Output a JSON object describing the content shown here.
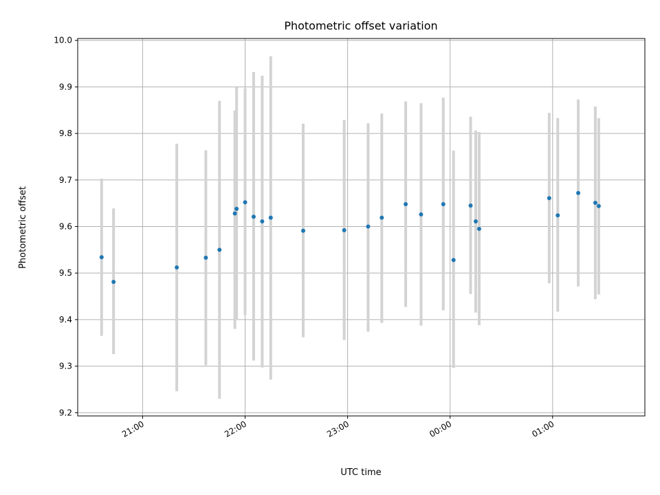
{
  "chart_data": {
    "type": "scatter",
    "title": "Photometric offset variation",
    "xlabel": "UTC time",
    "ylabel": "Photometric offset",
    "x_axis": {
      "type": "time",
      "range": [
        "20:22",
        "01:54"
      ],
      "ticks": [
        "21:00",
        "22:00",
        "23:00",
        "00:00",
        "01:00"
      ]
    },
    "y_axis": {
      "range": [
        9.193,
        10.004
      ],
      "ticks": [
        "9.2",
        "9.3",
        "9.4",
        "9.5",
        "9.6",
        "9.7",
        "9.8",
        "9.9",
        "10.0"
      ]
    },
    "grid": true,
    "colors": {
      "marker": "#1f77b4",
      "errorbar": "#d3d3d3"
    },
    "points": [
      {
        "time": "20:36",
        "y": 9.534,
        "low": 9.365,
        "high": 9.703
      },
      {
        "time": "20:43",
        "y": 9.481,
        "low": 9.326,
        "high": 9.639
      },
      {
        "time": "21:20",
        "y": 9.512,
        "low": 9.246,
        "high": 9.778
      },
      {
        "time": "21:37",
        "y": 9.533,
        "low": 9.302,
        "high": 9.764
      },
      {
        "time": "21:45",
        "y": 9.55,
        "low": 9.23,
        "high": 9.87
      },
      {
        "time": "21:54",
        "y": 9.628,
        "low": 9.38,
        "high": 9.849
      },
      {
        "time": "21:55",
        "y": 9.638,
        "low": 9.4,
        "high": 9.899
      },
      {
        "time": "22:00",
        "y": 9.652,
        "low": 9.41,
        "high": 9.897
      },
      {
        "time": "22:05",
        "y": 9.621,
        "low": 9.312,
        "high": 9.932
      },
      {
        "time": "22:10",
        "y": 9.611,
        "low": 9.297,
        "high": 9.924
      },
      {
        "time": "22:15",
        "y": 9.619,
        "low": 9.271,
        "high": 9.966
      },
      {
        "time": "22:34",
        "y": 9.591,
        "low": 9.362,
        "high": 9.821
      },
      {
        "time": "22:58",
        "y": 9.592,
        "low": 9.356,
        "high": 9.829
      },
      {
        "time": "23:12",
        "y": 9.6,
        "low": 9.374,
        "high": 9.822
      },
      {
        "time": "23:20",
        "y": 9.619,
        "low": 9.393,
        "high": 9.843
      },
      {
        "time": "23:34",
        "y": 9.648,
        "low": 9.427,
        "high": 9.869
      },
      {
        "time": "23:43",
        "y": 9.626,
        "low": 9.387,
        "high": 9.865
      },
      {
        "time": "23:56",
        "y": 9.648,
        "low": 9.42,
        "high": 9.877
      },
      {
        "time": "00:02",
        "y": 9.528,
        "low": 9.296,
        "high": 9.763
      },
      {
        "time": "00:12",
        "y": 9.645,
        "low": 9.455,
        "high": 9.836
      },
      {
        "time": "00:15",
        "y": 9.611,
        "low": 9.415,
        "high": 9.806
      },
      {
        "time": "00:17",
        "y": 9.595,
        "low": 9.388,
        "high": 9.803
      },
      {
        "time": "00:58",
        "y": 9.661,
        "low": 9.478,
        "high": 9.844
      },
      {
        "time": "01:03",
        "y": 9.624,
        "low": 9.417,
        "high": 9.833
      },
      {
        "time": "01:15",
        "y": 9.672,
        "low": 9.471,
        "high": 9.873
      },
      {
        "time": "01:25",
        "y": 9.651,
        "low": 9.444,
        "high": 9.858
      },
      {
        "time": "01:27",
        "y": 9.644,
        "low": 9.454,
        "high": 9.833
      }
    ]
  }
}
